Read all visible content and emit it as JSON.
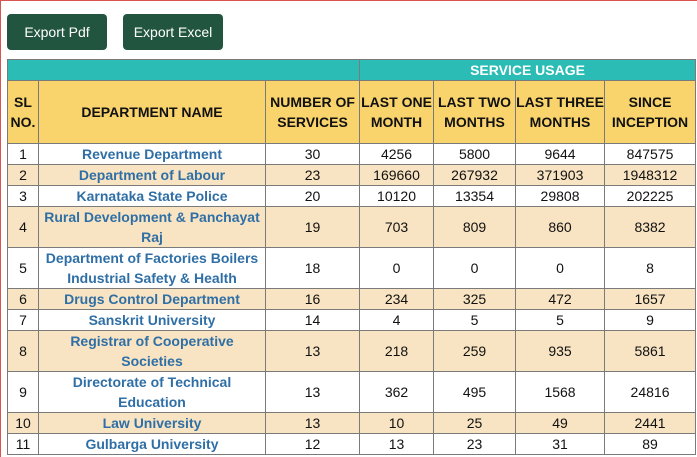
{
  "toolbar": {
    "export_pdf_label": "Export Pdf",
    "export_excel_label": "Export Excel"
  },
  "table": {
    "group_header": "SERVICE USAGE",
    "columns": {
      "sl": "SL NO.",
      "department": "DEPARTMENT NAME",
      "services": "NUMBER OF SERVICES",
      "one_month": "LAST ONE MONTH",
      "two_months": "LAST TWO MONTHS",
      "three_months": "LAST THREE MONTHS",
      "inception": "SINCE INCEPTION"
    },
    "rows": [
      {
        "sl": "1",
        "department": "Revenue Department",
        "services": "30",
        "one": "4256",
        "two": "5800",
        "three": "9644",
        "since": "847575"
      },
      {
        "sl": "2",
        "department": "Department of Labour",
        "services": "23",
        "one": "169660",
        "two": "267932",
        "three": "371903",
        "since": "1948312"
      },
      {
        "sl": "3",
        "department": "Karnataka State Police",
        "services": "20",
        "one": "10120",
        "two": "13354",
        "three": "29808",
        "since": "202225"
      },
      {
        "sl": "4",
        "department": "Rural Development & Panchayat Raj",
        "services": "19",
        "one": "703",
        "two": "809",
        "three": "860",
        "since": "8382"
      },
      {
        "sl": "5",
        "department": "Department of Factories Boilers Industrial Safety & Health",
        "services": "18",
        "one": "0",
        "two": "0",
        "three": "0",
        "since": "8"
      },
      {
        "sl": "6",
        "department": "Drugs Control Department",
        "services": "16",
        "one": "234",
        "two": "325",
        "three": "472",
        "since": "1657"
      },
      {
        "sl": "7",
        "department": "Sanskrit University",
        "services": "14",
        "one": "4",
        "two": "5",
        "three": "5",
        "since": "9"
      },
      {
        "sl": "8",
        "department": "Registrar of Cooperative Societies",
        "services": "13",
        "one": "218",
        "two": "259",
        "three": "935",
        "since": "5861"
      },
      {
        "sl": "9",
        "department": "Directorate of Technical Education",
        "services": "13",
        "one": "362",
        "two": "495",
        "three": "1568",
        "since": "24816"
      },
      {
        "sl": "10",
        "department": "Law University",
        "services": "13",
        "one": "10",
        "two": "25",
        "three": "49",
        "since": "2441"
      },
      {
        "sl": "11",
        "department": "Gulbarga University",
        "services": "12",
        "one": "13",
        "two": "23",
        "three": "31",
        "since": "89"
      }
    ]
  }
}
